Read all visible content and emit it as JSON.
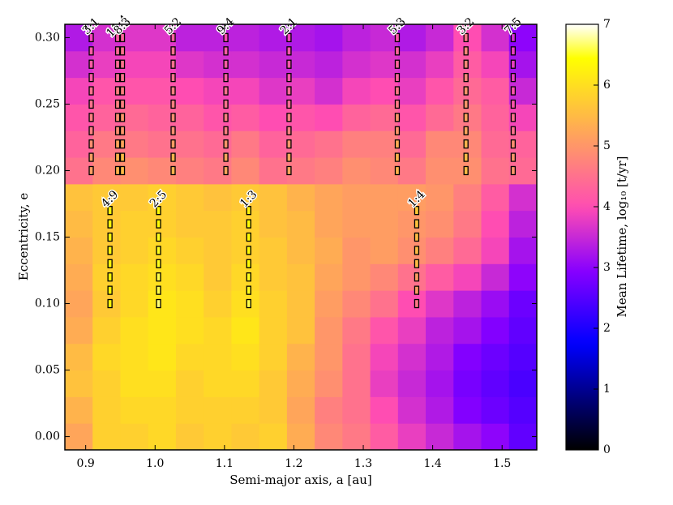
{
  "chart_data": {
    "type": "heatmap",
    "xlabel": "Semi-major axis, a [au]",
    "ylabel": "Eccentricity, e",
    "colorbar_label": "Mean Lifetime, log₁₀ [t/yr]",
    "colormap": "gnuplot2",
    "x": [
      0.89,
      0.93,
      0.97,
      1.01,
      1.05,
      1.09,
      1.13,
      1.17,
      1.21,
      1.25,
      1.29,
      1.33,
      1.37,
      1.41,
      1.45,
      1.49,
      1.53
    ],
    "y": [
      0.0,
      0.02,
      0.04,
      0.06,
      0.08,
      0.1,
      0.12,
      0.14,
      0.16,
      0.18,
      0.2,
      0.22,
      0.24,
      0.26,
      0.28,
      0.3
    ],
    "z": [
      [
        5.2,
        5.8,
        5.8,
        5.9,
        5.7,
        5.8,
        5.7,
        5.8,
        5.3,
        4.8,
        4.6,
        4.2,
        3.8,
        3.5,
        3.2,
        3.0,
        2.6
      ],
      [
        5.4,
        5.8,
        5.9,
        5.9,
        5.8,
        5.8,
        5.8,
        5.7,
        5.2,
        4.7,
        4.5,
        4.0,
        3.6,
        3.3,
        2.9,
        2.7,
        2.5
      ],
      [
        5.6,
        5.8,
        6.0,
        6.0,
        5.8,
        5.9,
        5.9,
        5.7,
        5.3,
        4.9,
        4.5,
        3.8,
        3.5,
        3.2,
        2.8,
        2.6,
        2.4
      ],
      [
        5.5,
        5.9,
        6.0,
        6.1,
        5.9,
        5.9,
        6.0,
        5.8,
        5.4,
        5.0,
        4.5,
        3.9,
        3.6,
        3.3,
        2.9,
        2.7,
        2.5
      ],
      [
        5.3,
        5.8,
        6.0,
        6.1,
        6.0,
        5.9,
        6.1,
        5.8,
        5.6,
        5.0,
        4.6,
        4.1,
        3.8,
        3.4,
        3.2,
        2.9,
        2.6
      ],
      [
        5.2,
        5.7,
        5.9,
        6.1,
        6.0,
        5.8,
        6.0,
        5.8,
        5.6,
        5.1,
        4.8,
        4.5,
        4.0,
        3.7,
        3.4,
        3.1,
        2.7
      ],
      [
        5.3,
        5.8,
        5.9,
        6.0,
        5.9,
        5.7,
        5.9,
        5.7,
        5.6,
        5.2,
        5.0,
        4.8,
        4.5,
        4.2,
        3.9,
        3.5,
        3.0
      ],
      [
        5.4,
        5.7,
        5.8,
        5.9,
        5.8,
        5.7,
        5.8,
        5.7,
        5.5,
        5.3,
        5.0,
        5.1,
        4.9,
        4.7,
        4.4,
        3.9,
        3.2
      ],
      [
        5.5,
        5.7,
        5.8,
        5.8,
        5.7,
        5.7,
        5.8,
        5.6,
        5.5,
        5.2,
        5.1,
        5.1,
        5.0,
        4.9,
        4.6,
        4.0,
        3.4
      ],
      [
        5.6,
        5.7,
        5.7,
        5.8,
        5.7,
        5.6,
        5.7,
        5.6,
        5.4,
        5.2,
        5.1,
        5.1,
        5.1,
        5.0,
        4.7,
        4.2,
        3.6
      ],
      [
        4.5,
        4.8,
        4.9,
        4.8,
        4.7,
        4.6,
        4.8,
        4.5,
        4.6,
        4.7,
        4.9,
        4.8,
        4.6,
        4.9,
        4.9,
        4.5,
        4.4
      ],
      [
        4.3,
        4.6,
        4.6,
        4.5,
        4.5,
        4.4,
        4.6,
        4.3,
        4.4,
        4.5,
        4.7,
        4.7,
        4.4,
        4.8,
        4.8,
        4.4,
        4.3
      ],
      [
        4.1,
        4.3,
        4.4,
        4.3,
        4.3,
        4.1,
        4.2,
        4.0,
        4.1,
        4.0,
        4.3,
        4.4,
        4.1,
        4.4,
        4.6,
        4.3,
        3.9
      ],
      [
        3.9,
        4.1,
        4.1,
        4.1,
        4.0,
        3.9,
        3.9,
        3.7,
        3.8,
        3.6,
        3.9,
        4.0,
        3.8,
        4.1,
        4.4,
        4.2,
        3.5
      ],
      [
        3.6,
        3.8,
        3.9,
        3.9,
        3.7,
        3.6,
        3.6,
        3.5,
        3.5,
        3.4,
        3.6,
        3.7,
        3.6,
        3.8,
        4.2,
        3.9,
        3.2
      ],
      [
        3.3,
        3.6,
        3.7,
        3.7,
        3.4,
        3.4,
        3.4,
        3.3,
        3.3,
        3.2,
        3.4,
        3.5,
        3.3,
        3.5,
        4.0,
        3.6,
        3.0
      ]
    ],
    "xlim": [
      0.87,
      1.55
    ],
    "ylim": [
      -0.01,
      0.31
    ],
    "clim": [
      0,
      7
    ],
    "xticks": [
      {
        "value": 0.9,
        "label": "0.9"
      },
      {
        "value": 1.0,
        "label": "1.0"
      },
      {
        "value": 1.1,
        "label": "1.1"
      },
      {
        "value": 1.2,
        "label": "1.2"
      },
      {
        "value": 1.3,
        "label": "1.3"
      },
      {
        "value": 1.4,
        "label": "1.4"
      },
      {
        "value": 1.5,
        "label": "1.5"
      }
    ],
    "yticks": [
      {
        "value": 0.0,
        "label": "0.00"
      },
      {
        "value": 0.05,
        "label": "0.05"
      },
      {
        "value": 0.1,
        "label": "0.10"
      },
      {
        "value": 0.15,
        "label": "0.15"
      },
      {
        "value": 0.2,
        "label": "0.20"
      },
      {
        "value": 0.25,
        "label": "0.25"
      },
      {
        "value": 0.3,
        "label": "0.30"
      }
    ],
    "cticks": [
      0,
      1,
      2,
      3,
      4,
      5,
      6,
      7
    ],
    "resonances": [
      {
        "label": "3:1",
        "a": 0.908,
        "e": [
          0.2,
          0.21,
          0.22,
          0.23,
          0.24,
          0.25,
          0.26,
          0.27,
          0.28,
          0.29,
          0.3
        ]
      },
      {
        "label": "11:4",
        "a": 0.946,
        "e": [
          0.2,
          0.21,
          0.22,
          0.23,
          0.24,
          0.25,
          0.26,
          0.27,
          0.28,
          0.29,
          0.3
        ]
      },
      {
        "label": "8:3",
        "a": 0.953,
        "e": [
          0.2,
          0.21,
          0.22,
          0.23,
          0.24,
          0.25,
          0.26,
          0.27,
          0.28,
          0.29,
          0.3
        ]
      },
      {
        "label": "5:2",
        "a": 1.026,
        "e": [
          0.2,
          0.21,
          0.22,
          0.23,
          0.24,
          0.25,
          0.26,
          0.27,
          0.28,
          0.29,
          0.3
        ]
      },
      {
        "label": "9:4",
        "a": 1.102,
        "e": [
          0.2,
          0.21,
          0.22,
          0.23,
          0.24,
          0.25,
          0.26,
          0.27,
          0.28,
          0.29,
          0.3
        ]
      },
      {
        "label": "2:1",
        "a": 1.193,
        "e": [
          0.2,
          0.21,
          0.22,
          0.23,
          0.24,
          0.25,
          0.26,
          0.27,
          0.28,
          0.29,
          0.3
        ]
      },
      {
        "label": "5:3",
        "a": 1.349,
        "e": [
          0.2,
          0.21,
          0.22,
          0.23,
          0.24,
          0.25,
          0.26,
          0.27,
          0.28,
          0.29,
          0.3
        ]
      },
      {
        "label": "3:2",
        "a": 1.448,
        "e": [
          0.2,
          0.21,
          0.22,
          0.23,
          0.24,
          0.25,
          0.26,
          0.27,
          0.28,
          0.29,
          0.3
        ]
      },
      {
        "label": "7:5",
        "a": 1.516,
        "e": [
          0.2,
          0.21,
          0.22,
          0.23,
          0.24,
          0.25,
          0.26,
          0.27,
          0.28,
          0.29,
          0.3
        ]
      },
      {
        "label": "4:9",
        "a": 0.935,
        "e": [
          0.1,
          0.11,
          0.12,
          0.13,
          0.14,
          0.15,
          0.16,
          0.17
        ]
      },
      {
        "label": "2:5",
        "a": 1.005,
        "e": [
          0.1,
          0.11,
          0.12,
          0.13,
          0.14,
          0.15,
          0.16,
          0.17
        ]
      },
      {
        "label": "1:3",
        "a": 1.135,
        "e": [
          0.1,
          0.11,
          0.12,
          0.13,
          0.14,
          0.15,
          0.16,
          0.17
        ]
      },
      {
        "label": "1:4",
        "a": 1.377,
        "e": [
          0.1,
          0.11,
          0.12,
          0.13,
          0.14,
          0.15,
          0.16,
          0.17
        ]
      }
    ]
  }
}
